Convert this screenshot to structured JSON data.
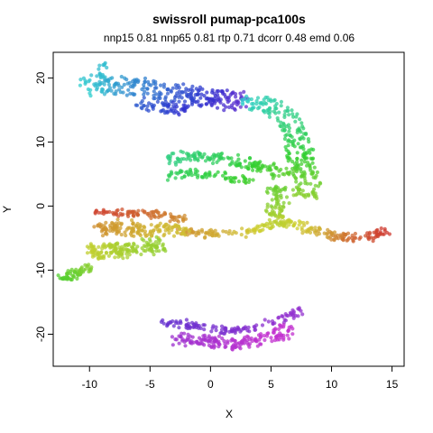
{
  "chart_data": {
    "type": "scatter",
    "title": "swissroll pumap-pca100s",
    "subtitle": "nnp15 0.81 nnp65 0.81 rtp 0.71 dcorr 0.48 emd 0.06",
    "xlabel": "X",
    "ylabel": "Y",
    "xlim": [
      -13,
      16
    ],
    "ylim": [
      -25,
      24
    ],
    "xticks": [
      -10,
      -5,
      0,
      5,
      10,
      15
    ],
    "yticks": [
      -20,
      -10,
      0,
      10,
      20
    ],
    "grid": false,
    "legend": "none",
    "marker_opacity": 0.75,
    "segments": [
      {
        "name": "upper-left arm",
        "points": [
          [
            -10.5,
            18.5,
            0.5
          ],
          [
            -9.5,
            19.0,
            0.52
          ],
          [
            -8.0,
            19.0,
            0.55
          ],
          [
            -6.0,
            18.5,
            0.58
          ],
          [
            -4.0,
            18.0,
            0.61
          ],
          [
            -2.0,
            17.5,
            0.64
          ],
          [
            0.0,
            17.0,
            0.67
          ],
          [
            1.5,
            16.5,
            0.7
          ],
          [
            3.0,
            16.5,
            0.72
          ]
        ],
        "width": 2.8,
        "count": 260
      },
      {
        "name": "upper-left arm lower lobe",
        "points": [
          [
            -6.0,
            16.0,
            0.62
          ],
          [
            -4.0,
            15.5,
            0.64
          ],
          [
            -2.0,
            15.0,
            0.67
          ]
        ],
        "width": 1.5,
        "count": 60
      },
      {
        "name": "top spike",
        "points": [
          [
            -8.8,
            20.0,
            0.52
          ],
          [
            -8.7,
            22.5,
            0.52
          ]
        ],
        "width": 0.4,
        "count": 14
      },
      {
        "name": "upper right curve",
        "points": [
          [
            2.5,
            16.0,
            0.5
          ],
          [
            4.0,
            16.0,
            0.47
          ],
          [
            5.5,
            15.0,
            0.44
          ],
          [
            6.5,
            13.0,
            0.41
          ],
          [
            7.0,
            11.0,
            0.38
          ],
          [
            7.3,
            9.0,
            0.35
          ],
          [
            7.5,
            7.0,
            0.32
          ],
          [
            7.8,
            5.0,
            0.29
          ],
          [
            8.0,
            3.0,
            0.26
          ],
          [
            7.8,
            1.0,
            0.23
          ]
        ],
        "width": 2.2,
        "count": 240
      },
      {
        "name": "middle green arm",
        "points": [
          [
            -3.5,
            7.5,
            0.42
          ],
          [
            -1.5,
            7.8,
            0.4
          ],
          [
            0.5,
            7.5,
            0.38
          ],
          [
            2.5,
            7.0,
            0.35
          ],
          [
            4.0,
            6.0,
            0.32
          ],
          [
            5.5,
            5.5,
            0.3
          ],
          [
            6.5,
            5.0,
            0.28
          ]
        ],
        "width": 1.6,
        "count": 150
      },
      {
        "name": "middle green arm lower",
        "points": [
          [
            -3.5,
            5.0,
            0.38
          ],
          [
            -1.0,
            5.0,
            0.36
          ],
          [
            1.5,
            4.5,
            0.33
          ],
          [
            3.5,
            4.0,
            0.31
          ]
        ],
        "width": 1.0,
        "count": 70
      },
      {
        "name": "right stem",
        "points": [
          [
            5.5,
            3.0,
            0.28
          ],
          [
            5.5,
            1.0,
            0.25
          ],
          [
            5.3,
            -1.0,
            0.22
          ],
          [
            5.5,
            -2.0,
            0.2
          ]
        ],
        "width": 1.4,
        "count": 70
      },
      {
        "name": "right arm",
        "points": [
          [
            5.5,
            -2.5,
            0.19
          ],
          [
            7.0,
            -3.0,
            0.17
          ],
          [
            8.5,
            -3.8,
            0.14
          ],
          [
            10.0,
            -4.5,
            0.1
          ],
          [
            11.5,
            -5.0,
            0.06
          ],
          [
            13.0,
            -4.8,
            0.03
          ],
          [
            14.5,
            -3.8,
            0.01
          ]
        ],
        "width": 1.2,
        "count": 140
      },
      {
        "name": "center bridge",
        "points": [
          [
            -3.0,
            -4.0,
            0.1
          ],
          [
            -0.5,
            -4.3,
            0.12
          ],
          [
            2.0,
            -4.3,
            0.14
          ],
          [
            4.0,
            -3.5,
            0.17
          ],
          [
            5.5,
            -2.5,
            0.19
          ]
        ],
        "width": 0.8,
        "count": 90
      },
      {
        "name": "left block top",
        "points": [
          [
            -9.5,
            -1.0,
            0.02
          ],
          [
            -7.0,
            -1.0,
            0.04
          ],
          [
            -4.5,
            -1.3,
            0.07
          ],
          [
            -2.0,
            -2.0,
            0.1
          ]
        ],
        "width": 0.7,
        "count": 90
      },
      {
        "name": "left block upper fill",
        "points": [
          [
            -9.5,
            -3.5,
            0.1
          ],
          [
            -7.0,
            -3.5,
            0.12
          ],
          [
            -4.5,
            -3.8,
            0.14
          ],
          [
            -2.0,
            -4.0,
            0.15
          ]
        ],
        "width": 2.0,
        "count": 150
      },
      {
        "name": "left block lower fill",
        "points": [
          [
            -10.0,
            -7.0,
            0.18
          ],
          [
            -8.0,
            -7.0,
            0.2
          ],
          [
            -6.0,
            -6.5,
            0.22
          ],
          [
            -4.0,
            -6.0,
            0.23
          ]
        ],
        "width": 2.2,
        "count": 170
      },
      {
        "name": "left tail",
        "points": [
          [
            -10.0,
            -9.5,
            0.24
          ],
          [
            -11.0,
            -10.5,
            0.27
          ],
          [
            -12.3,
            -11.5,
            0.3
          ]
        ],
        "width": 0.9,
        "count": 60
      },
      {
        "name": "bottom blob top",
        "points": [
          [
            -4.0,
            -18.3,
            0.72
          ],
          [
            -2.0,
            -18.5,
            0.73
          ],
          [
            0.0,
            -19.0,
            0.74
          ],
          [
            2.0,
            -19.5,
            0.75
          ],
          [
            4.0,
            -19.0,
            0.76
          ],
          [
            6.0,
            -17.5,
            0.77
          ],
          [
            7.5,
            -16.0,
            0.77
          ]
        ],
        "width": 1.0,
        "count": 120
      },
      {
        "name": "bottom blob body",
        "points": [
          [
            -3.0,
            -20.5,
            0.78
          ],
          [
            -1.0,
            -21.0,
            0.79
          ],
          [
            1.0,
            -21.5,
            0.8
          ],
          [
            3.0,
            -21.5,
            0.81
          ],
          [
            5.0,
            -20.5,
            0.82
          ],
          [
            6.5,
            -19.0,
            0.82
          ]
        ],
        "width": 1.6,
        "count": 170
      }
    ]
  }
}
